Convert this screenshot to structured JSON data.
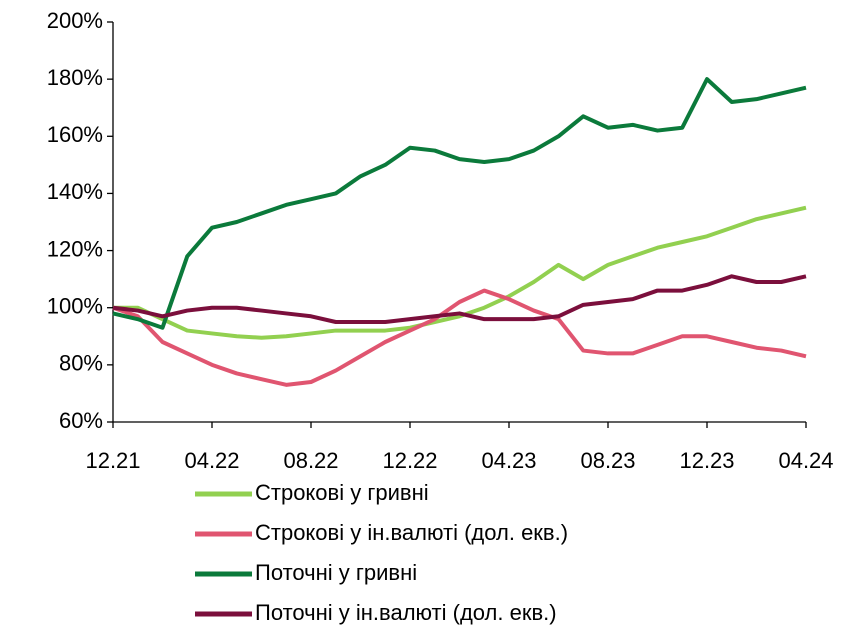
{
  "chart_data": {
    "type": "line",
    "categories": [
      "12.21",
      null,
      null,
      null,
      "04.22",
      null,
      null,
      null,
      "08.22",
      null,
      null,
      null,
      "12.22",
      null,
      null,
      null,
      "04.23",
      null,
      null,
      null,
      "08.23",
      null,
      null,
      null,
      "12.23",
      null,
      null,
      null,
      "04.24"
    ],
    "series": [
      {
        "name": "Строкові у гривні",
        "color": "#92d050",
        "values": [
          100,
          100,
          96,
          92,
          91,
          90,
          89.5,
          90,
          91,
          92,
          92,
          92,
          93,
          95,
          97,
          100,
          104,
          109,
          115,
          110,
          115,
          118,
          121,
          123,
          125,
          128,
          131,
          133,
          135
        ]
      },
      {
        "name": "Строкові у ін.валюті (дол. екв.)",
        "color": "#e05570",
        "values": [
          100,
          97,
          88,
          84,
          80,
          77,
          75,
          73,
          74,
          78,
          83,
          88,
          92,
          96,
          102,
          106,
          103,
          99,
          96,
          85,
          84,
          84,
          87,
          90,
          90,
          88,
          86,
          85,
          83
        ]
      },
      {
        "name": "Поточні у гривні",
        "color": "#0b7a3b",
        "values": [
          98,
          96,
          93,
          118,
          128,
          130,
          133,
          136,
          138,
          140,
          146,
          150,
          156,
          155,
          152,
          151,
          152,
          155,
          160,
          167,
          163,
          164,
          162,
          163,
          180,
          172,
          173,
          175,
          177
        ]
      },
      {
        "name": "Поточні у ін.валюті (дол. екв.)",
        "color": "#7b0f3c",
        "values": [
          100,
          99,
          97,
          99,
          100,
          100,
          99,
          98,
          97,
          95,
          95,
          95,
          96,
          97,
          98,
          96,
          96,
          96,
          97,
          101,
          102,
          103,
          106,
          106,
          108,
          111,
          109,
          109,
          111
        ]
      }
    ],
    "ylim": [
      60,
      200
    ],
    "yticks": [
      {
        "value": 60,
        "label": "60%"
      },
      {
        "value": 80,
        "label": "80%"
      },
      {
        "value": 100,
        "label": "100%"
      },
      {
        "value": 120,
        "label": "120%"
      },
      {
        "value": 140,
        "label": "140%"
      },
      {
        "value": 160,
        "label": "160%"
      },
      {
        "value": 180,
        "label": "180%"
      },
      {
        "value": 200,
        "label": "200%"
      }
    ],
    "legend": "bottom"
  }
}
